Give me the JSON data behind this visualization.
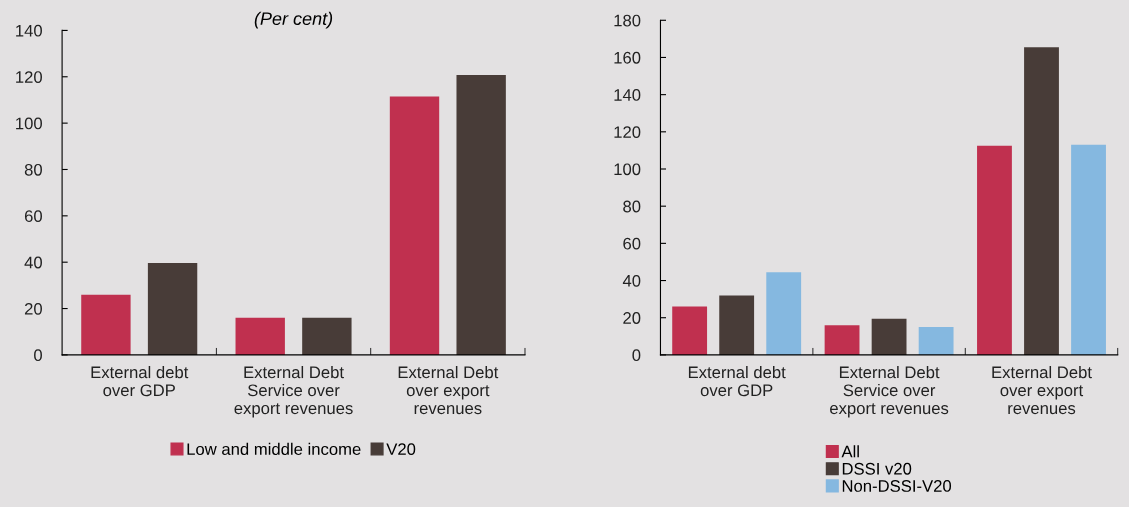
{
  "chart_data": [
    {
      "type": "bar",
      "title": "(Per cent)",
      "categories": [
        "External debt\nover GDP",
        "External Debt\nService over\nexport revenues",
        "External Debt\nover export\nrevenues"
      ],
      "series": [
        {
          "name": "Low and middle income",
          "color": "#c0304f",
          "values": [
            26,
            16,
            111.5
          ]
        },
        {
          "name": "V20",
          "color": "#483c38",
          "values": [
            39.7,
            16,
            120.8
          ]
        }
      ],
      "ylim": [
        0,
        140
      ],
      "yticks": [
        0,
        20,
        40,
        60,
        80,
        100,
        120,
        140
      ],
      "grid": false,
      "legend": "bottom"
    },
    {
      "type": "bar",
      "categories": [
        "External debt\nover GDP",
        "External Debt\nService over\nexport revenues",
        "External Debt\nover export\nrevenues"
      ],
      "series": [
        {
          "name": "All",
          "color": "#c0304f",
          "values": [
            26,
            16,
            112.5
          ]
        },
        {
          "name": "DSSI v20",
          "color": "#483c38",
          "values": [
            32,
            19.5,
            165.5
          ]
        },
        {
          "name": "Non-DSSI-V20",
          "color": "#85b8e0",
          "values": [
            44.5,
            15,
            113
          ]
        }
      ],
      "ylim": [
        0,
        180
      ],
      "yticks": [
        0,
        20,
        40,
        60,
        80,
        100,
        120,
        140,
        160,
        180
      ],
      "grid": false,
      "legend": "bottom"
    }
  ]
}
